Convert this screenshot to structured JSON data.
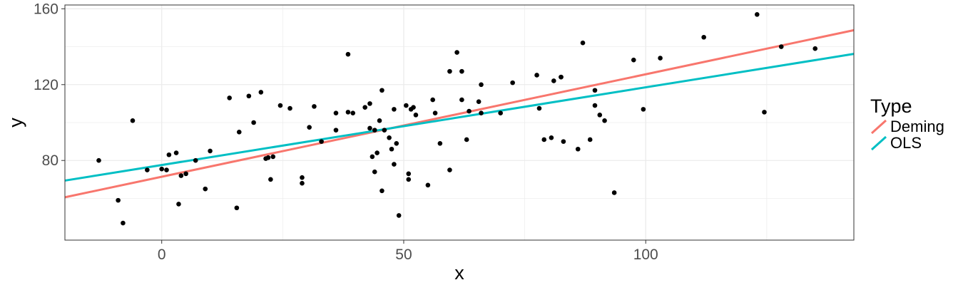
{
  "chart_data": {
    "type": "scatter",
    "title": "",
    "xlabel": "x",
    "ylabel": "y",
    "xlim": [
      -20,
      143
    ],
    "ylim": [
      38,
      162
    ],
    "x_ticks": [
      0,
      50,
      100
    ],
    "x_tick_labels": [
      "0",
      "50",
      "100"
    ],
    "x_minor_ticks": [
      -25,
      25,
      75,
      125
    ],
    "y_ticks": [
      80,
      120,
      160
    ],
    "y_tick_labels": [
      "80",
      "120",
      "160"
    ],
    "y_minor_ticks": [
      60,
      100,
      140
    ],
    "grid": true,
    "legend": {
      "title": "Type",
      "position": "right"
    },
    "points": [
      [
        -13,
        80
      ],
      [
        -9,
        59
      ],
      [
        -8,
        47
      ],
      [
        -6,
        101
      ],
      [
        -3,
        75
      ],
      [
        0,
        75.5
      ],
      [
        1,
        75
      ],
      [
        1.5,
        83
      ],
      [
        3,
        84
      ],
      [
        4,
        72
      ],
      [
        3.5,
        57
      ],
      [
        5,
        73
      ],
      [
        7,
        80
      ],
      [
        9,
        65
      ],
      [
        10,
        85
      ],
      [
        14,
        113
      ],
      [
        15.5,
        55
      ],
      [
        16,
        95
      ],
      [
        18,
        114
      ],
      [
        19,
        100
      ],
      [
        20.5,
        116
      ],
      [
        21.5,
        81
      ],
      [
        22,
        81.5
      ],
      [
        22.5,
        70
      ],
      [
        23,
        82
      ],
      [
        24.5,
        109
      ],
      [
        26.5,
        107.5
      ],
      [
        29,
        71
      ],
      [
        29,
        68
      ],
      [
        30.5,
        97.5
      ],
      [
        31.5,
        108.5
      ],
      [
        33,
        90
      ],
      [
        36,
        96
      ],
      [
        36,
        105
      ],
      [
        38.5,
        105.5
      ],
      [
        38.5,
        136
      ],
      [
        39.5,
        105
      ],
      [
        42,
        108
      ],
      [
        43,
        97
      ],
      [
        43,
        110
      ],
      [
        43.5,
        82
      ],
      [
        44,
        96
      ],
      [
        44,
        74
      ],
      [
        44.5,
        84
      ],
      [
        45,
        101
      ],
      [
        45.5,
        117
      ],
      [
        45.5,
        64
      ],
      [
        46,
        96
      ],
      [
        47,
        92
      ],
      [
        47.5,
        86
      ],
      [
        48,
        78
      ],
      [
        48,
        107
      ],
      [
        48.5,
        89
      ],
      [
        49,
        51
      ],
      [
        50.5,
        109
      ],
      [
        51,
        73
      ],
      [
        51,
        70
      ],
      [
        51.5,
        107
      ],
      [
        52,
        108
      ],
      [
        52.5,
        104
      ],
      [
        55,
        67
      ],
      [
        56,
        112
      ],
      [
        56.5,
        105
      ],
      [
        57.5,
        89
      ],
      [
        59.5,
        127
      ],
      [
        59.5,
        75
      ],
      [
        61,
        137
      ],
      [
        62,
        127
      ],
      [
        62,
        112
      ],
      [
        63,
        91
      ],
      [
        63.5,
        106
      ],
      [
        65.5,
        111
      ],
      [
        66,
        105
      ],
      [
        66,
        120
      ],
      [
        70,
        105
      ],
      [
        72.5,
        121
      ],
      [
        77.5,
        125
      ],
      [
        78,
        107.5
      ],
      [
        79,
        91
      ],
      [
        80.5,
        92
      ],
      [
        81,
        122
      ],
      [
        82.5,
        124
      ],
      [
        82.5,
        124
      ],
      [
        83,
        90
      ],
      [
        86,
        86
      ],
      [
        87,
        142
      ],
      [
        88.5,
        91
      ],
      [
        89.5,
        117
      ],
      [
        89.5,
        109
      ],
      [
        90.5,
        104
      ],
      [
        91.5,
        101
      ],
      [
        93.5,
        63
      ],
      [
        97.5,
        133
      ],
      [
        99.5,
        107
      ],
      [
        103,
        134
      ],
      [
        112,
        145
      ],
      [
        123,
        157
      ],
      [
        124.5,
        105.5
      ],
      [
        128,
        140
      ],
      [
        135,
        139
      ]
    ],
    "series": [
      {
        "name": "Deming",
        "color": "#F8766D",
        "line": {
          "x": [
            -20,
            143
          ],
          "y": [
            60.6,
            148.7
          ]
        }
      },
      {
        "name": "OLS",
        "color": "#00BFC4",
        "line": {
          "x": [
            -20,
            143
          ],
          "y": [
            69.4,
            136.2
          ]
        }
      }
    ],
    "style": {
      "point_color": "#000000",
      "grid_color": "#ebebeb",
      "panel_border_color": "#333333",
      "tick_color": "#333333"
    }
  }
}
